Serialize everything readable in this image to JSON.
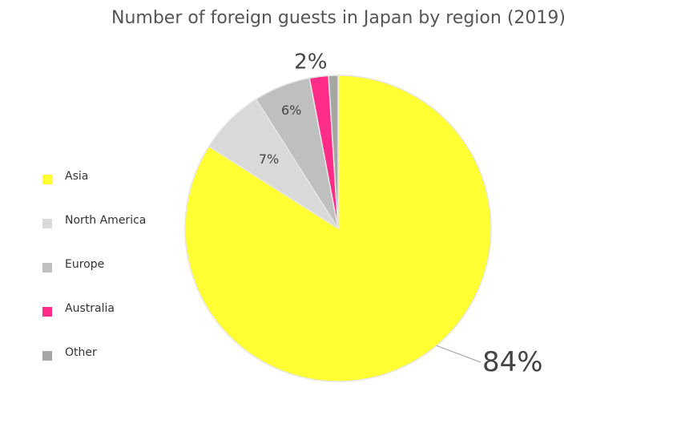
{
  "chart_data": {
    "type": "pie",
    "title": "Number of foreign guests in Japan by region (2019)",
    "slices": [
      {
        "name": "Asia",
        "value": 84,
        "label": "84%",
        "color": "#ffff33"
      },
      {
        "name": "North America",
        "value": 7,
        "label": "7%",
        "color": "#d9d9d9"
      },
      {
        "name": "Europe",
        "value": 6,
        "label": "6%",
        "color": "#bfbfbf"
      },
      {
        "name": "Australia",
        "value": 2,
        "label": "2%",
        "color": "#ff2d87"
      },
      {
        "name": "Other",
        "value": 1,
        "label": "",
        "color": "#a6a6a6"
      }
    ],
    "legend_position": "left"
  }
}
